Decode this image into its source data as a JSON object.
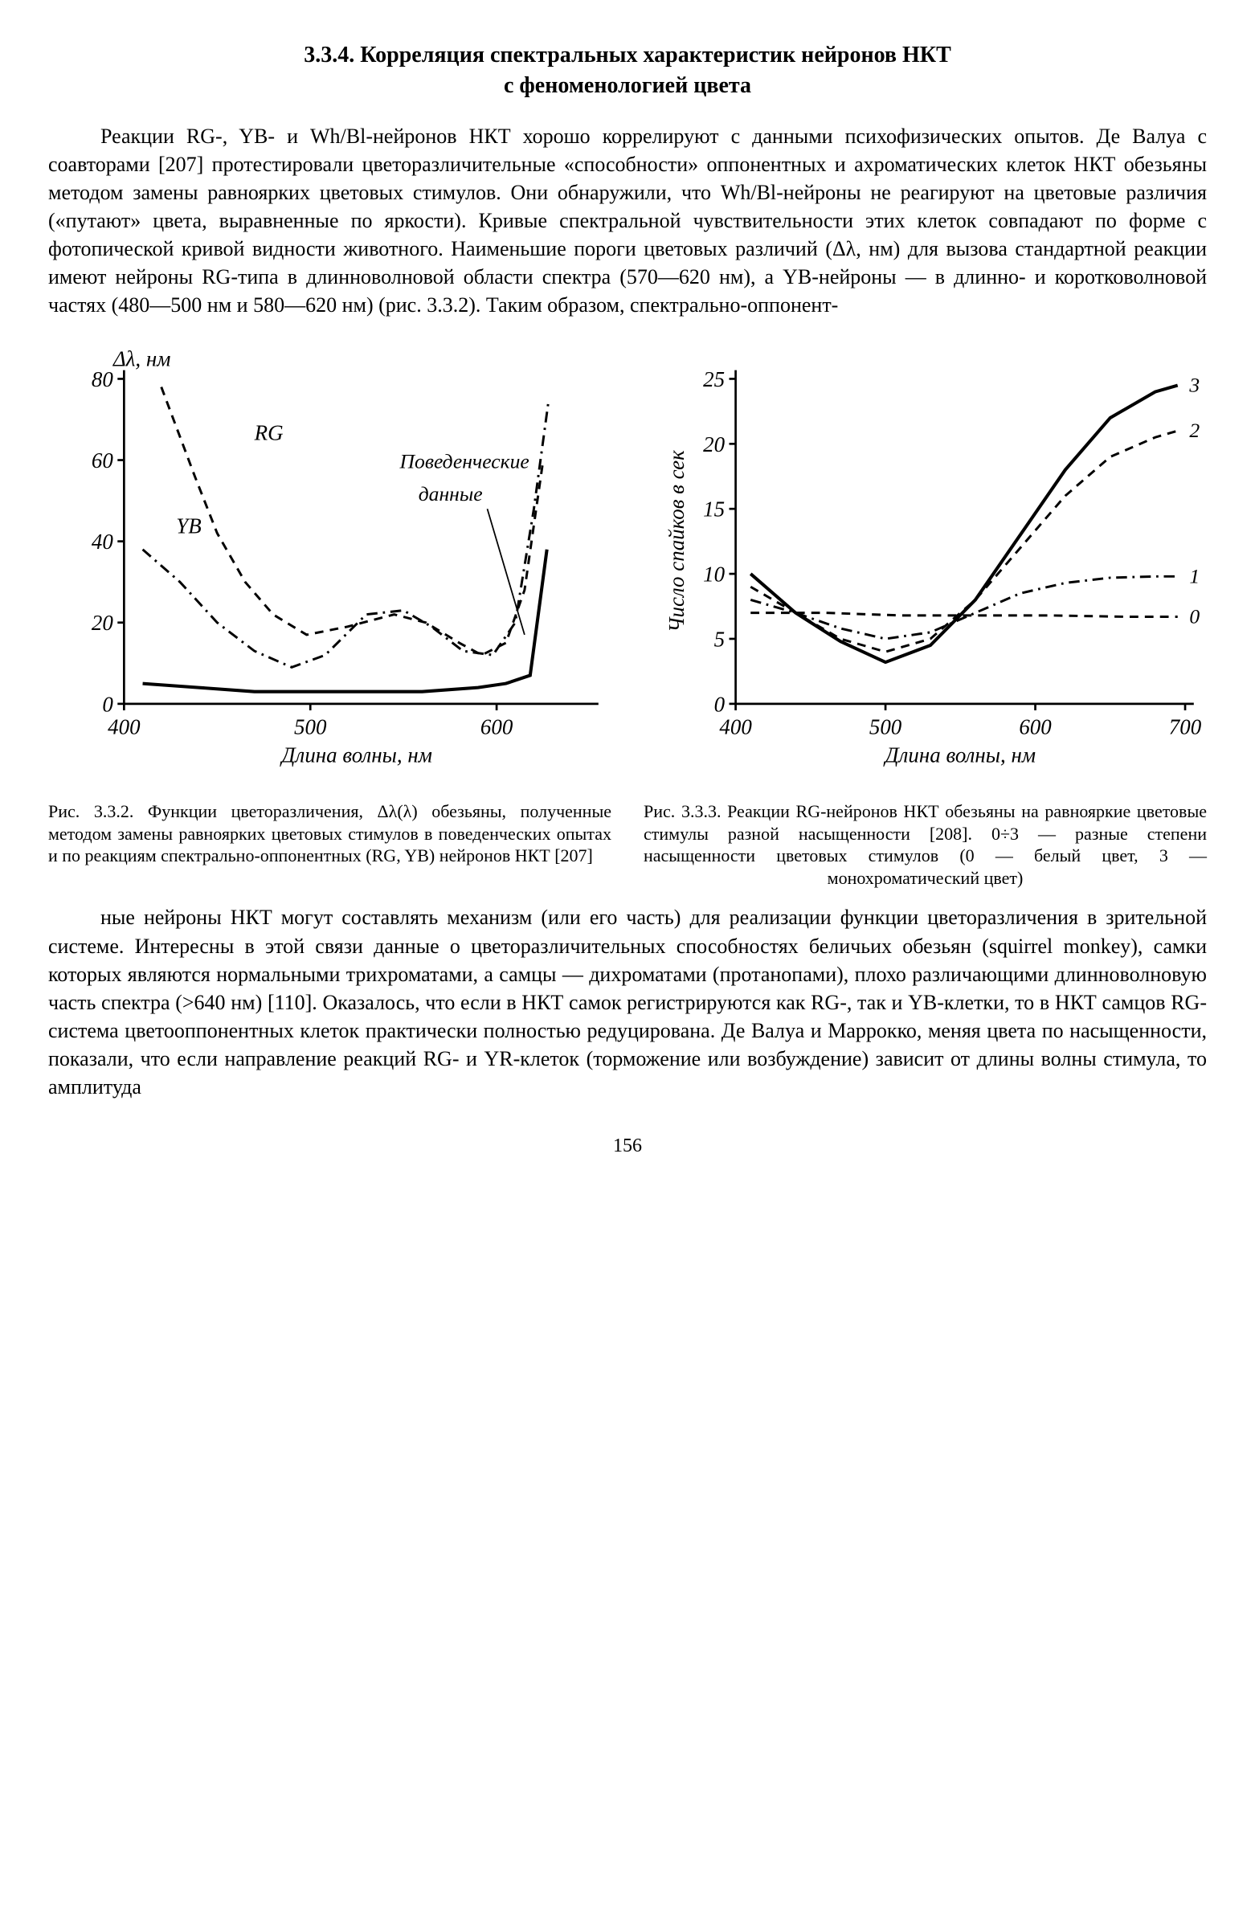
{
  "section": {
    "number": "3.3.4.",
    "title_line1": "Корреляция спектральных характеристик нейронов НКТ",
    "title_line2": "с феноменологией цвета"
  },
  "para1": "Реакции RG-, YB- и Wh/Bl-нейронов НКТ хорошо коррелируют с данными психофизических опытов. Де Валуа с соавторами [207] протестировали цветоразличительные «способности» оппонентных и ахроматических клеток НКТ обезьяны методом замены равноярких цветовых стимулов. Они обнаружили, что Wh/Bl-нейроны не реагируют на цветовые различия («путают» цвета, выравненные по яркости). Кривые спектральной чувствительности этих клеток совпадают по форме с фотопической кривой видности животного. Наименьшие пороги цветовых различий (Δλ, нм) для вызова стандартной реакции имеют нейроны RG-типа в длинноволновой области спектра (570—620 нм), а YB-нейроны — в длинно- и коротковолновой частях (480—500 нм и 580—620 нм) (рис. 3.3.2). Таким образом, спектрально-оппонент-",
  "para2": "ные нейроны НКТ могут составлять механизм (или его часть) для реализации функции цветоразличения в зрительной системе. Интересны в этой связи данные о цветоразличительных способностях беличьих обезьян (squirrel monkey), самки которых являются нормальными трихроматами, а самцы — дихроматами (протанопами), плохо различающими длинноволновую часть спектра (>640 нм) [110]. Оказалось, что если в НКТ самок регистрируются как RG-, так и YB-клетки, то в НКТ самцов RG-система цветооппонентных клеток практически полностью редуцирована. Де Валуа и Маррокко, меняя цвета по насыщенности, показали, что если направление реакций RG- и YR-клеток (торможение или возбуждение) зависит от длины волны стимула, то амплитуда",
  "page_number": "156",
  "fig_left": {
    "id": "Рис. 3.3.2.",
    "caption": "Функции цветоразличения, Δλ(λ) обезьяны, полученные методом замены равноярких цветовых стимулов в поведенческих опытах и по реакциям спектрально-оппонентных (RG, YB) нейронов НКТ [207]",
    "type": "line",
    "ylabel": "Δλ, нм",
    "xlabel": "Длина волны, нм",
    "xlim": [
      400,
      650
    ],
    "ylim": [
      0,
      80
    ],
    "xticks": [
      400,
      500,
      600
    ],
    "yticks": [
      0,
      20,
      40,
      60,
      80
    ],
    "line_color": "#000000",
    "line_width": 2.2,
    "background_color": "#ffffff",
    "axis_color": "#000000",
    "label_fontsize": 22,
    "series": {
      "behavioral": {
        "label": "Поведенческие данные",
        "style": "solid",
        "points": [
          [
            410,
            5
          ],
          [
            440,
            4
          ],
          [
            470,
            3
          ],
          [
            500,
            3
          ],
          [
            530,
            3
          ],
          [
            560,
            3
          ],
          [
            590,
            4
          ],
          [
            605,
            5
          ],
          [
            618,
            7
          ],
          [
            627,
            38
          ]
        ]
      },
      "RG": {
        "label": "RG",
        "style": "dash",
        "points": [
          [
            420,
            78
          ],
          [
            438,
            56
          ],
          [
            450,
            42
          ],
          [
            465,
            30
          ],
          [
            480,
            22
          ],
          [
            498,
            17
          ],
          [
            520,
            19
          ],
          [
            545,
            22
          ],
          [
            562,
            20
          ],
          [
            580,
            15
          ],
          [
            592,
            12
          ],
          [
            605,
            15
          ],
          [
            615,
            28
          ],
          [
            625,
            60
          ]
        ]
      },
      "YB": {
        "label": "YB",
        "style": "dashdot",
        "points": [
          [
            410,
            38
          ],
          [
            430,
            30
          ],
          [
            450,
            20
          ],
          [
            470,
            13
          ],
          [
            490,
            9
          ],
          [
            508,
            12
          ],
          [
            530,
            22
          ],
          [
            550,
            23
          ],
          [
            565,
            19
          ],
          [
            582,
            13
          ],
          [
            598,
            12
          ],
          [
            610,
            20
          ],
          [
            620,
            48
          ],
          [
            628,
            75
          ]
        ]
      }
    }
  },
  "fig_right": {
    "id": "Рис. 3.3.3.",
    "caption": "Реакции RG-нейронов НКТ обезьяны на равнояркие цветовые стимулы разной насыщенности [208]. 0÷3 — разные степени насыщенности цветовых стимулов (0 — белый цвет, 3 — монохроматический цвет)",
    "type": "line",
    "ylabel": "Число спайков в сек",
    "xlabel": "Длина волны, нм",
    "xlim": [
      400,
      700
    ],
    "ylim": [
      0,
      25
    ],
    "xticks": [
      400,
      500,
      600,
      700
    ],
    "yticks": [
      0,
      5,
      10,
      15,
      20,
      25
    ],
    "line_color": "#000000",
    "line_width": 2.2,
    "background_color": "#ffffff",
    "axis_color": "#000000",
    "label_fontsize": 22,
    "series": {
      "s0": {
        "label": "0",
        "style": "dash",
        "points": [
          [
            410,
            7
          ],
          [
            460,
            7
          ],
          [
            510,
            6.8
          ],
          [
            560,
            6.8
          ],
          [
            610,
            6.8
          ],
          [
            660,
            6.7
          ],
          [
            695,
            6.7
          ]
        ]
      },
      "s1": {
        "label": "1",
        "style": "dashdot",
        "points": [
          [
            410,
            8
          ],
          [
            440,
            7
          ],
          [
            470,
            5.8
          ],
          [
            500,
            5
          ],
          [
            530,
            5.5
          ],
          [
            560,
            7
          ],
          [
            590,
            8.5
          ],
          [
            620,
            9.3
          ],
          [
            650,
            9.7
          ],
          [
            680,
            9.8
          ],
          [
            695,
            9.8
          ]
        ]
      },
      "s2": {
        "label": "2",
        "style": "dash",
        "points": [
          [
            410,
            9
          ],
          [
            440,
            7
          ],
          [
            470,
            5
          ],
          [
            500,
            4
          ],
          [
            530,
            5
          ],
          [
            560,
            8
          ],
          [
            590,
            12
          ],
          [
            620,
            16
          ],
          [
            650,
            19
          ],
          [
            680,
            20.5
          ],
          [
            695,
            21
          ]
        ]
      },
      "s3": {
        "label": "3",
        "style": "solid",
        "points": [
          [
            410,
            10
          ],
          [
            440,
            7
          ],
          [
            470,
            4.8
          ],
          [
            500,
            3.2
          ],
          [
            530,
            4.5
          ],
          [
            560,
            8
          ],
          [
            590,
            13
          ],
          [
            620,
            18
          ],
          [
            650,
            22
          ],
          [
            680,
            24
          ],
          [
            695,
            24.5
          ]
        ]
      }
    }
  }
}
